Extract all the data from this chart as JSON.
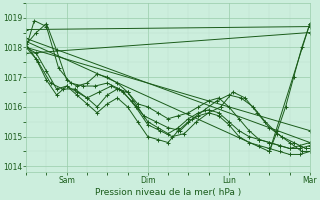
{
  "xlabel": "Pression niveau de la mer( hPa )",
  "bg_color": "#cceedd",
  "line_color": "#1a5c1a",
  "grid_major_color": "#99ccaa",
  "grid_minor_color": "#bbddcc",
  "tick_label_color": "#1a5c1a",
  "ylim": [
    1013.8,
    1019.5
  ],
  "yticks": [
    1014,
    1015,
    1016,
    1017,
    1018,
    1019
  ],
  "xlim": [
    0,
    7
  ],
  "day_labels": [
    "Sam",
    "Dim",
    "Lun",
    "Mar"
  ],
  "day_positions": [
    1,
    3,
    5,
    7
  ],
  "series": [
    {
      "x": [
        0.0,
        7.0
      ],
      "y": [
        1018.6,
        1018.7
      ]
    },
    {
      "x": [
        0.0,
        6.0,
        7.0
      ],
      "y": [
        1018.2,
        1014.5,
        1018.8
      ]
    },
    {
      "x": [
        0.0,
        7.0
      ],
      "y": [
        1017.8,
        1018.5
      ]
    },
    {
      "x": [
        0.0,
        7.0
      ],
      "y": [
        1018.3,
        1014.8
      ]
    },
    {
      "x": [
        0.0,
        7.0
      ],
      "y": [
        1018.0,
        1015.2
      ]
    },
    {
      "x": [
        0.0,
        0.25,
        0.5,
        0.75,
        1.0,
        1.25,
        1.5,
        1.75,
        2.0,
        2.25,
        2.5,
        2.75,
        3.0,
        3.25,
        3.5,
        3.75,
        4.0,
        4.25,
        4.5,
        4.75,
        5.0,
        5.25,
        5.5,
        5.75,
        6.0,
        6.25,
        6.5,
        6.75,
        7.0
      ],
      "y": [
        1018.1,
        1018.5,
        1018.8,
        1017.9,
        1016.9,
        1016.7,
        1016.8,
        1017.1,
        1017.0,
        1016.8,
        1016.5,
        1016.1,
        1016.0,
        1015.8,
        1015.6,
        1015.7,
        1015.8,
        1016.0,
        1016.2,
        1016.3,
        1016.0,
        1015.6,
        1015.2,
        1014.9,
        1014.8,
        1014.7,
        1014.6,
        1014.7,
        1014.8
      ]
    },
    {
      "x": [
        0.0,
        0.25,
        0.5,
        0.75,
        1.0,
        1.25,
        1.5,
        1.75,
        2.0,
        2.25,
        2.5,
        2.75,
        3.0,
        3.25,
        3.5,
        3.75,
        4.0,
        4.25,
        4.5,
        4.75,
        5.0,
        5.25,
        5.5,
        5.75,
        6.0,
        6.25,
        6.5,
        6.75,
        7.0
      ],
      "y": [
        1018.0,
        1017.8,
        1017.2,
        1016.6,
        1016.7,
        1016.5,
        1016.3,
        1016.0,
        1016.4,
        1016.6,
        1016.5,
        1016.0,
        1015.5,
        1015.3,
        1015.1,
        1015.3,
        1015.6,
        1015.8,
        1015.9,
        1015.8,
        1015.5,
        1015.2,
        1015.0,
        1014.9,
        1014.8,
        1014.7,
        1014.6,
        1014.6,
        1014.7
      ]
    },
    {
      "x": [
        0.0,
        0.25,
        0.5,
        0.75,
        1.0,
        1.25,
        1.5,
        1.75,
        2.0,
        2.25,
        2.5,
        2.75,
        3.0,
        3.25,
        3.5,
        3.75,
        4.0,
        4.25,
        4.5,
        4.75,
        5.0,
        5.25,
        5.5,
        5.75,
        6.0,
        6.25,
        6.5,
        6.75,
        7.0
      ],
      "y": [
        1018.0,
        1017.6,
        1016.9,
        1016.4,
        1016.7,
        1016.4,
        1016.1,
        1015.8,
        1016.1,
        1016.3,
        1016.0,
        1015.5,
        1015.0,
        1014.9,
        1014.8,
        1015.2,
        1015.5,
        1015.7,
        1015.8,
        1015.7,
        1015.4,
        1015.0,
        1014.8,
        1014.7,
        1014.6,
        1014.5,
        1014.4,
        1014.4,
        1014.5
      ]
    },
    {
      "x": [
        0.0,
        0.3,
        0.6,
        0.9,
        1.2,
        1.5,
        1.8,
        2.1,
        2.4,
        2.7,
        3.0,
        3.3,
        3.6,
        3.9,
        4.2,
        4.5,
        4.8,
        5.1,
        5.4,
        5.7,
        6.0,
        6.3,
        6.6,
        6.9,
        7.0
      ],
      "y": [
        1018.1,
        1017.5,
        1016.8,
        1016.6,
        1016.6,
        1016.3,
        1016.5,
        1016.7,
        1016.5,
        1016.0,
        1015.4,
        1015.2,
        1015.0,
        1015.1,
        1015.5,
        1015.8,
        1016.0,
        1016.5,
        1016.3,
        1015.8,
        1015.3,
        1015.0,
        1014.8,
        1014.6,
        1014.6
      ]
    },
    {
      "x": [
        0.0,
        0.2,
        0.5,
        0.8,
        1.1,
        1.4,
        1.7,
        2.0,
        2.3,
        2.6,
        2.9,
        3.2,
        3.5,
        3.8,
        4.1,
        4.4,
        4.7,
        5.0,
        5.3,
        5.6,
        5.9,
        6.2,
        6.5,
        6.8,
        7.0
      ],
      "y": [
        1018.0,
        1018.9,
        1018.7,
        1017.3,
        1016.8,
        1016.7,
        1016.7,
        1016.8,
        1016.6,
        1016.2,
        1015.7,
        1015.5,
        1015.3,
        1015.2,
        1015.6,
        1015.9,
        1016.2,
        1016.4,
        1016.3,
        1016.0,
        1015.5,
        1015.1,
        1014.8,
        1014.5,
        1014.5
      ]
    },
    {
      "x": [
        6.0,
        6.2,
        6.4,
        6.6,
        6.8,
        7.0
      ],
      "y": [
        1014.5,
        1015.2,
        1016.0,
        1017.0,
        1018.0,
        1018.8
      ]
    }
  ]
}
